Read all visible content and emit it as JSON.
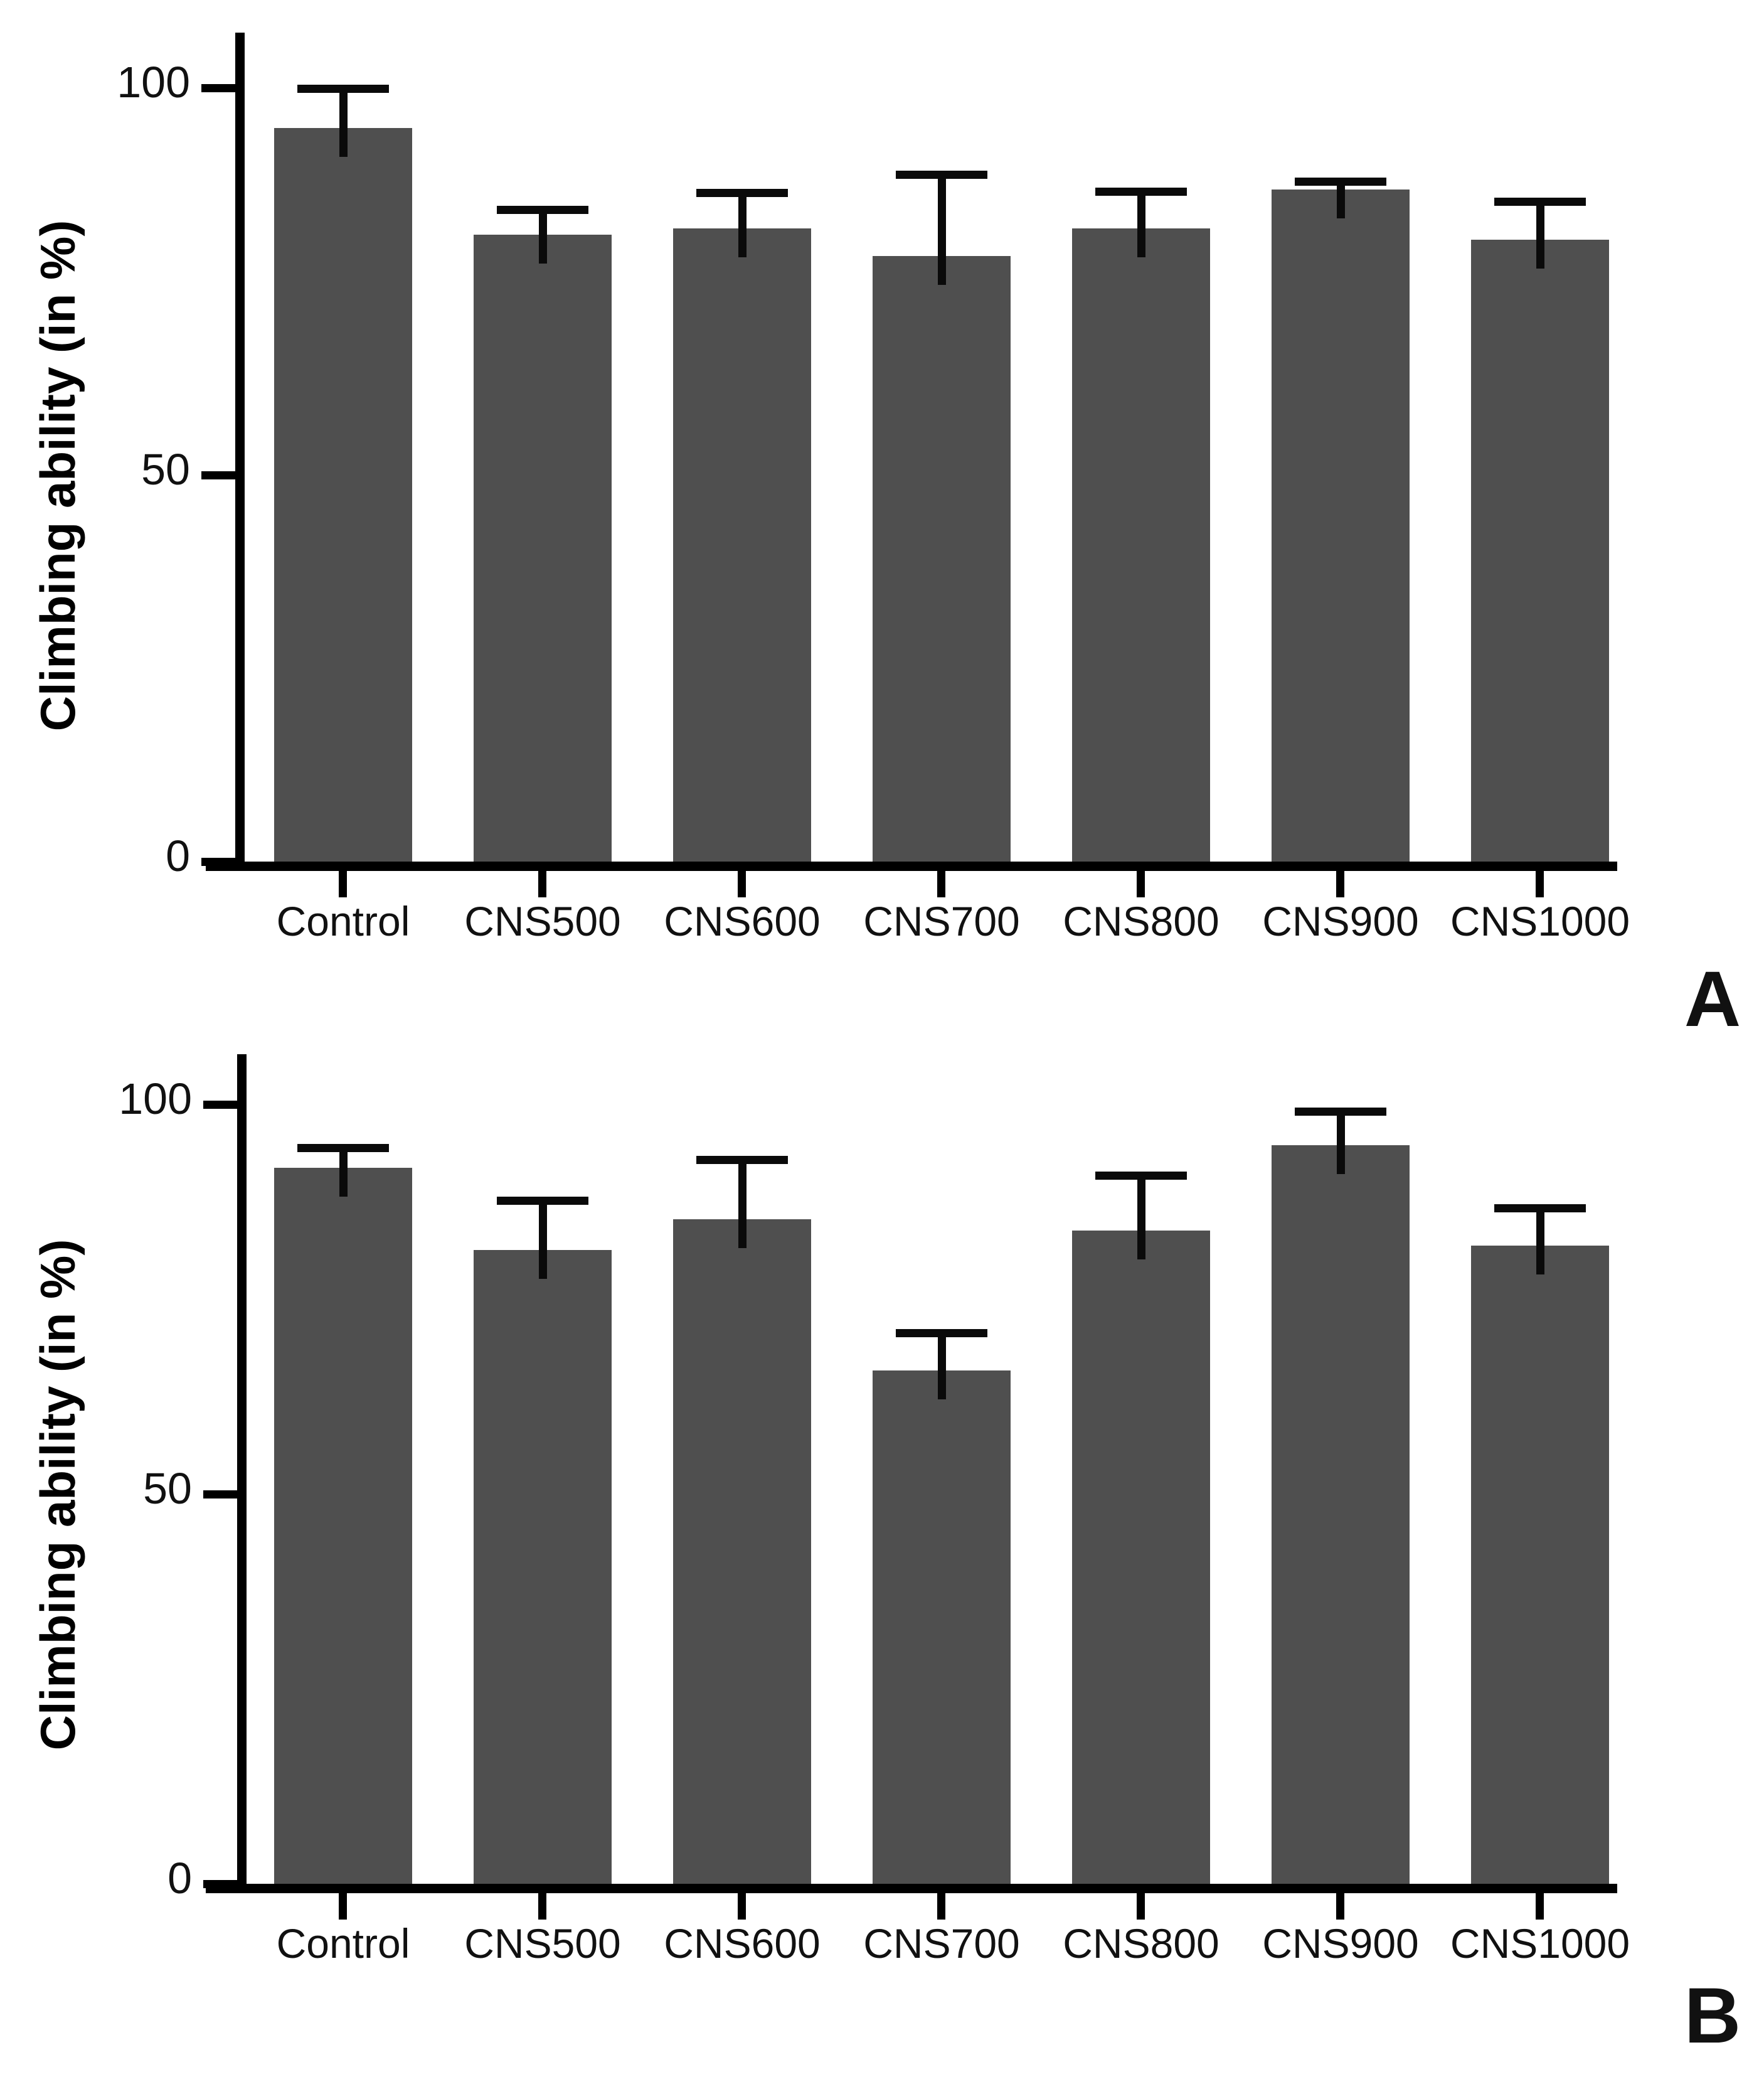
{
  "figure": {
    "background": "#ffffff",
    "bar_color": "#4f4f4f",
    "axis_color": "#000000",
    "text_color": "#111111"
  },
  "chart_data": [
    {
      "type": "bar",
      "panel_label": "A",
      "title": "",
      "xlabel": "",
      "ylabel": "Climbing ability (in %)",
      "categories": [
        "Control",
        "CNS500",
        "CNS600",
        "CNS700",
        "CNS800",
        "CNS900",
        "CNS1000"
      ],
      "values": [
        94.8,
        81.0,
        81.8,
        78.3,
        81.8,
        86.9,
        80.4
      ],
      "errors_upper": [
        5.0,
        3.2,
        4.6,
        10.4,
        4.7,
        0.9,
        4.8
      ],
      "yticks": [
        0,
        50,
        100
      ],
      "ylim": [
        0,
        107
      ],
      "grid": false,
      "legend_position": "none"
    },
    {
      "type": "bar",
      "panel_label": "B",
      "title": "",
      "xlabel": "",
      "ylabel": "Climbing ability (in %)",
      "categories": [
        "Control",
        "CNS500",
        "CNS600",
        "CNS700",
        "CNS800",
        "CNS900",
        "CNS1000"
      ],
      "values": [
        91.9,
        81.3,
        85.3,
        65.9,
        83.8,
        94.8,
        81.9
      ],
      "errors_upper": [
        2.5,
        6.3,
        7.5,
        4.7,
        7.0,
        4.2,
        4.7
      ],
      "yticks": [
        0,
        50,
        100
      ],
      "ylim": [
        0,
        107
      ],
      "grid": false,
      "legend_position": "none"
    }
  ]
}
